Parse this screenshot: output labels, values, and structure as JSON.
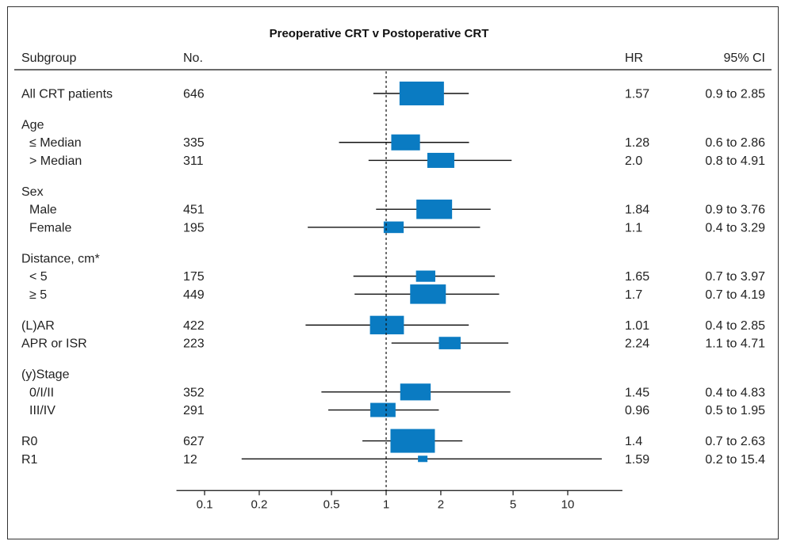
{
  "colors": {
    "box": "#0a7bc2",
    "line": "#111111",
    "text": "#222222",
    "border": "#333333"
  },
  "chart_data": {
    "type": "forest",
    "title": "Preoperative CRT v Postoperative CRT",
    "columns": {
      "subgroup": "Subgroup",
      "n": "No.",
      "hr": "HR",
      "ci": "95% CI"
    },
    "x_scale": "log",
    "xlim": [
      0.07,
      20
    ],
    "xticks": [
      {
        "value": 0.1,
        "label": "0.1"
      },
      {
        "value": 0.2,
        "label": "0.2"
      },
      {
        "value": 0.5,
        "label": "0.5"
      },
      {
        "value": 1,
        "label": "1"
      },
      {
        "value": 2,
        "label": "2"
      },
      {
        "value": 5,
        "label": "5"
      },
      {
        "value": 10,
        "label": "10"
      }
    ],
    "reference_line": 1,
    "rows": [
      {
        "kind": "data",
        "label": "All CRT patients",
        "indent": false,
        "n": "646",
        "hr": 1.57,
        "hr_text": "1.57",
        "lo": 0.85,
        "hi": 2.85,
        "ci_text": "0.9 to 2.85",
        "size": 1.0
      },
      {
        "kind": "gap"
      },
      {
        "kind": "header",
        "label": "Age"
      },
      {
        "kind": "data",
        "label": "≤ Median",
        "indent": true,
        "n": "335",
        "hr": 1.28,
        "hr_text": "1.28",
        "lo": 0.55,
        "hi": 2.86,
        "ci_text": "0.6 to 2.86",
        "size": 0.55
      },
      {
        "kind": "data",
        "label": "> Median",
        "indent": true,
        "n": "311",
        "hr": 2.0,
        "hr_text": "2.0",
        "lo": 0.8,
        "hi": 4.91,
        "ci_text": "0.8 to 4.91",
        "size": 0.5
      },
      {
        "kind": "gap"
      },
      {
        "kind": "header",
        "label": "Sex"
      },
      {
        "kind": "data",
        "label": "Male",
        "indent": true,
        "n": "451",
        "hr": 1.84,
        "hr_text": "1.84",
        "lo": 0.88,
        "hi": 3.76,
        "ci_text": "0.9 to 3.76",
        "size": 0.75
      },
      {
        "kind": "data",
        "label": "Female",
        "indent": true,
        "n": "195",
        "hr": 1.1,
        "hr_text": "1.1",
        "lo": 0.37,
        "hi": 3.29,
        "ci_text": "0.4 to 3.29",
        "size": 0.3
      },
      {
        "kind": "gap"
      },
      {
        "kind": "header",
        "label": "Distance, cm*"
      },
      {
        "kind": "data",
        "label": "< 5",
        "indent": true,
        "n": "175",
        "hr": 1.65,
        "hr_text": "1.65",
        "lo": 0.66,
        "hi": 3.97,
        "ci_text": "0.7 to 3.97",
        "size": 0.28
      },
      {
        "kind": "data",
        "label": "≥ 5",
        "indent": true,
        "n": "449",
        "hr": 1.7,
        "hr_text": "1.7",
        "lo": 0.67,
        "hi": 4.19,
        "ci_text": "0.7 to 4.19",
        "size": 0.75
      },
      {
        "kind": "gap"
      },
      {
        "kind": "data",
        "label": "(L)AR",
        "indent": false,
        "n": "422",
        "hr": 1.01,
        "hr_text": "1.01",
        "lo": 0.36,
        "hi": 2.85,
        "ci_text": "0.4 to 2.85",
        "size": 0.7
      },
      {
        "kind": "data",
        "label": "APR or ISR",
        "indent": false,
        "n": "223",
        "hr": 2.24,
        "hr_text": "2.24",
        "lo": 1.07,
        "hi": 4.71,
        "ci_text": "1.1 to 4.71",
        "size": 0.35
      },
      {
        "kind": "gap"
      },
      {
        "kind": "header",
        "label": "(y)Stage"
      },
      {
        "kind": "data",
        "label": "0/I/II",
        "indent": true,
        "n": "352",
        "hr": 1.45,
        "hr_text": "1.45",
        "lo": 0.44,
        "hi": 4.83,
        "ci_text": "0.4 to 4.83",
        "size": 0.6
      },
      {
        "kind": "data",
        "label": "III/IV",
        "indent": true,
        "n": "291",
        "hr": 0.96,
        "hr_text": "0.96",
        "lo": 0.48,
        "hi": 1.95,
        "ci_text": "0.5 to 1.95",
        "size": 0.45
      },
      {
        "kind": "gap"
      },
      {
        "kind": "data",
        "label": "R0",
        "indent": false,
        "n": "627",
        "hr": 1.4,
        "hr_text": "1.4",
        "lo": 0.74,
        "hi": 2.63,
        "ci_text": "0.7 to 2.63",
        "size": 1.0
      },
      {
        "kind": "data",
        "label": "R1",
        "indent": false,
        "n": "12",
        "hr": 1.59,
        "hr_text": "1.59",
        "lo": 0.16,
        "hi": 15.4,
        "ci_text": "0.2 to 15.4",
        "size": 0.0
      }
    ]
  }
}
